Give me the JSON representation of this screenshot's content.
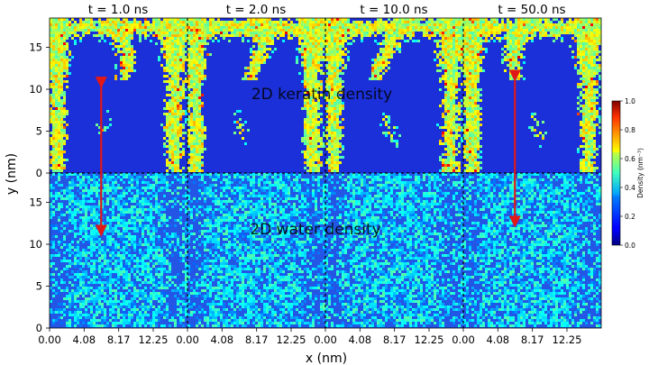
{
  "chart_data": {
    "type": "heatmap",
    "time_titles": [
      "t = 1.0 ns",
      "t = 2.0 ns",
      "t = 10.0 ns",
      "t = 50.0 ns"
    ],
    "rows": [
      {
        "name": "keratin",
        "label": "2D keratin density"
      },
      {
        "name": "water",
        "label": "2D water density"
      }
    ],
    "xlabel": "x (nm)",
    "ylabel": "y (nm)",
    "x_tick_labels": [
      "0.00",
      "4.08",
      "8.17",
      "12.25"
    ],
    "x_ticks": [
      0.0,
      4.08,
      8.17,
      12.25
    ],
    "xlim": [
      0,
      16.3
    ],
    "y_tick_labels": [
      "0",
      "5",
      "10",
      "15"
    ],
    "y_ticks": [
      0,
      5,
      10,
      15
    ],
    "ylim": [
      0,
      18.5
    ],
    "colorbar": {
      "label": "Density (nm⁻³)",
      "range": [
        0.0,
        1.0
      ],
      "tick_labels": [
        "0.0",
        "0.2",
        "0.4",
        "0.6",
        "0.8",
        "1.0"
      ],
      "ticks": [
        0.0,
        0.2,
        0.4,
        0.6,
        0.8,
        1.0
      ],
      "colormap": "jet"
    },
    "arrows": [
      {
        "panel": 0,
        "x": 6.1,
        "y_from_keratin": 10.8,
        "y_to_water": 11.6
      },
      {
        "panel": 3,
        "x": 6.1,
        "y_from_keratin": 11.6,
        "y_to_water": 12.7
      }
    ],
    "colors": {
      "background_low": "#1a2fd8",
      "mid": "#3ff0ff",
      "high": "#b4ff33",
      "arrow": "#e01818",
      "separator": "#000000"
    }
  }
}
